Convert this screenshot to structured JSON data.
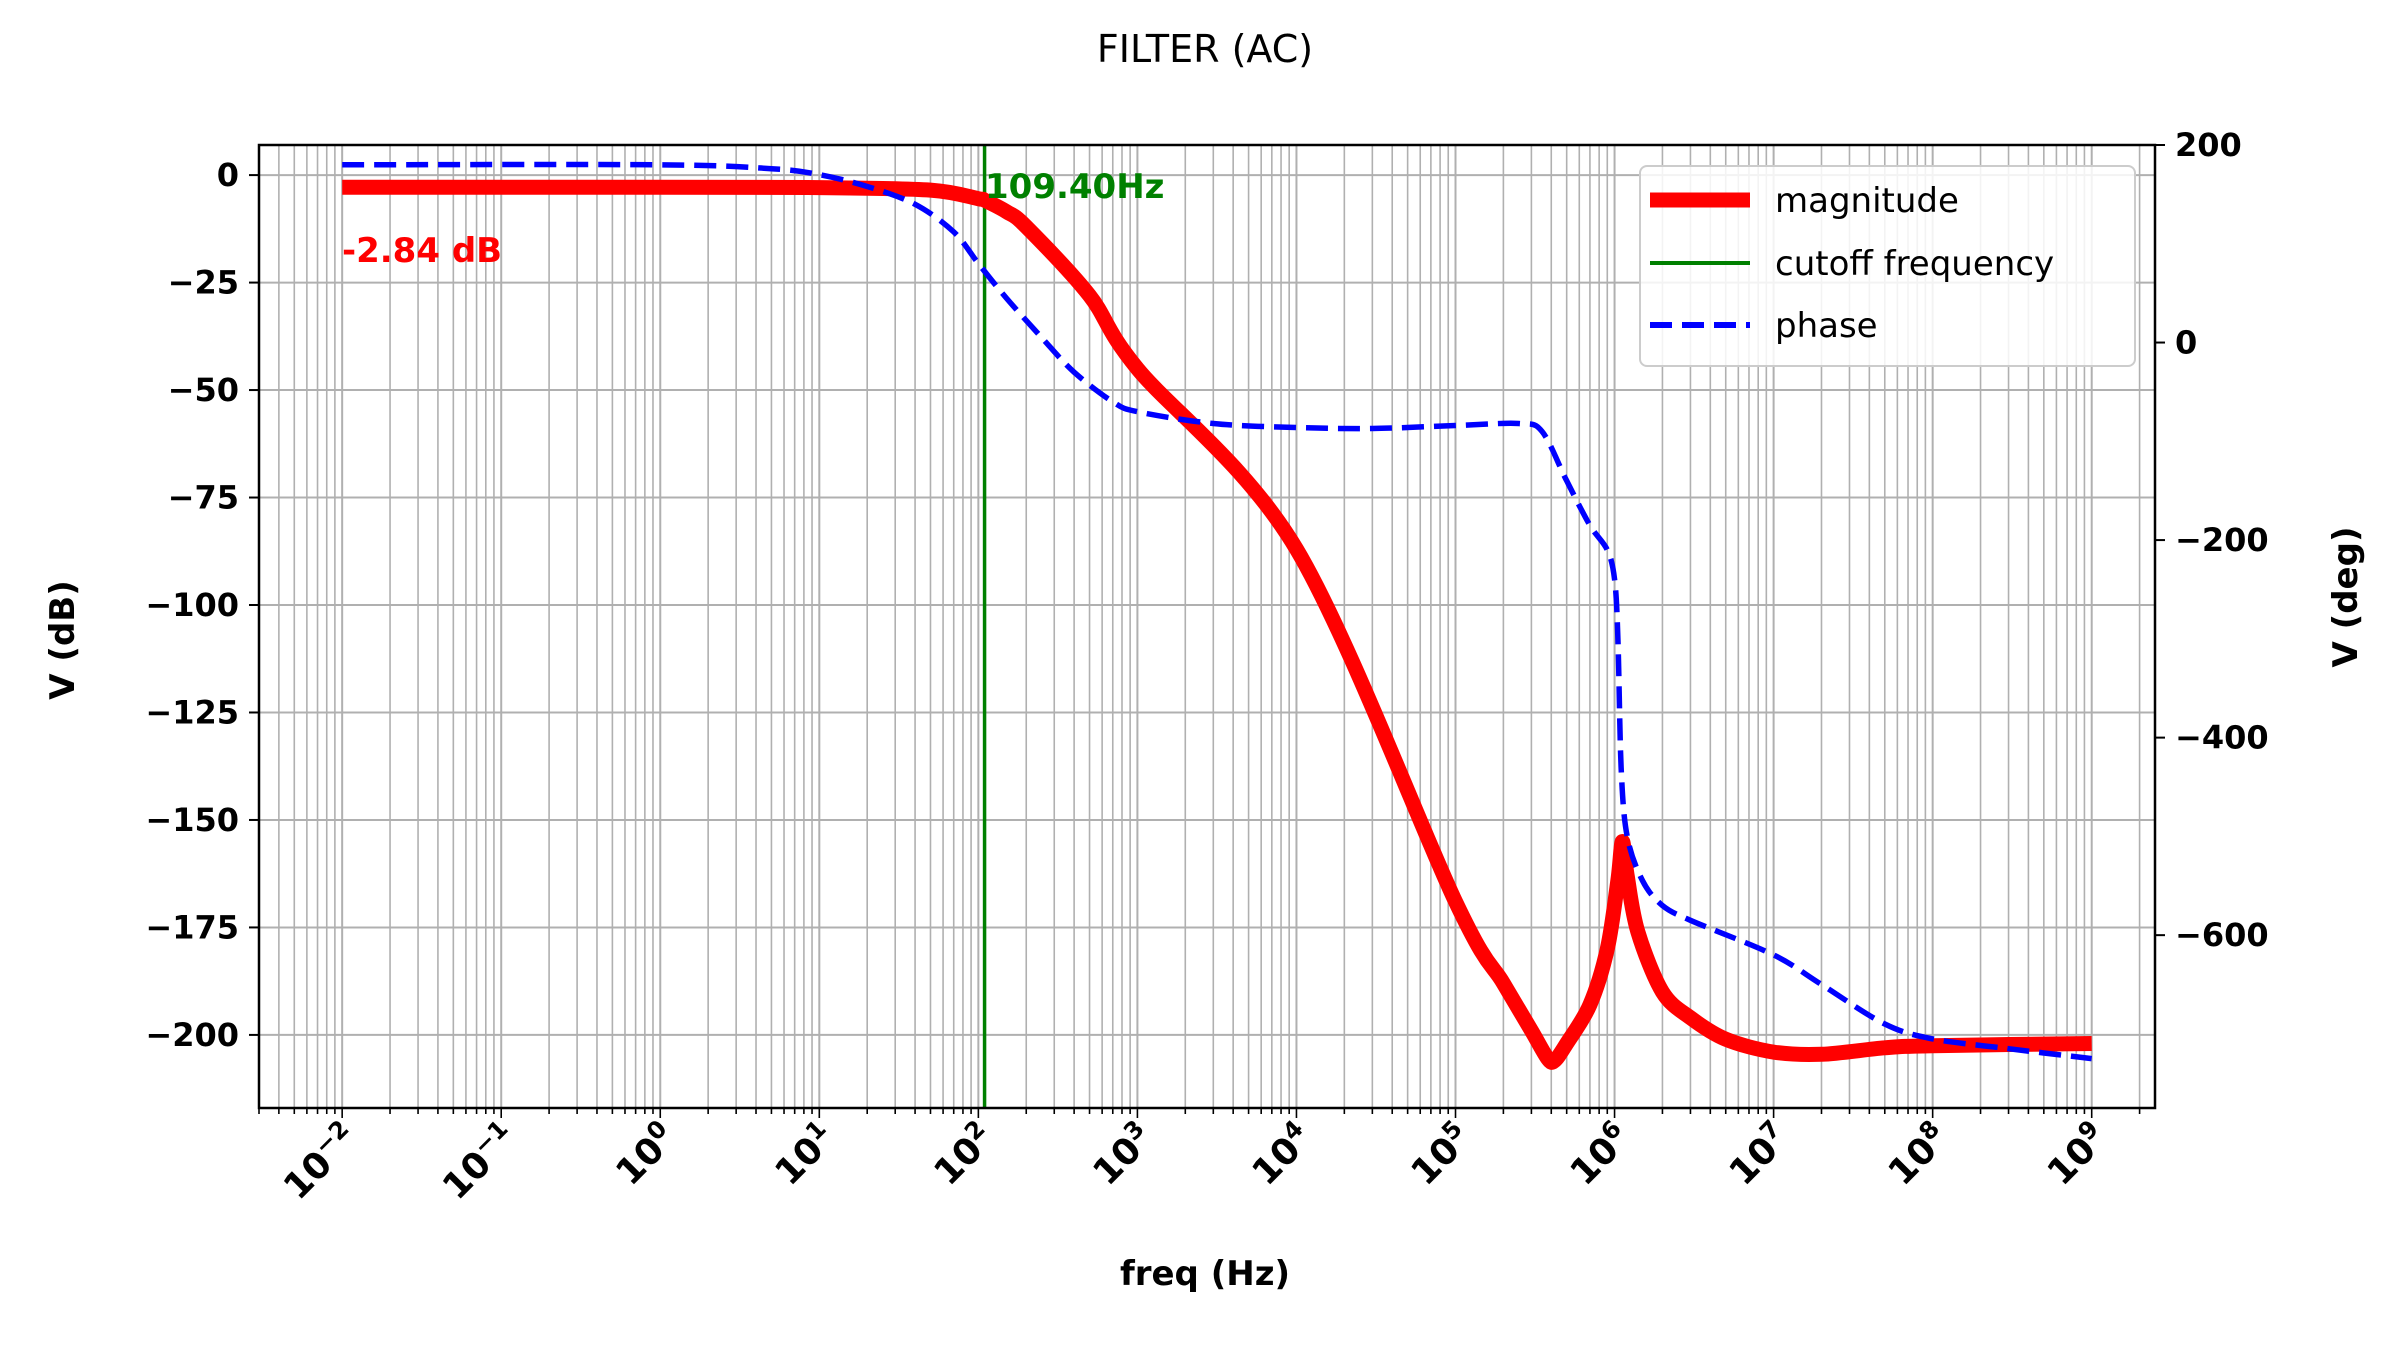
{
  "chart_data": {
    "type": "line",
    "title": "FILTER (AC)",
    "xlabel": "freq (Hz)",
    "ylabel_left": "V (dB)",
    "ylabel_right": "V (deg)",
    "xscale": "log",
    "xlim": [
      0.003,
      2500000000
    ],
    "ylim_left": [
      -217,
      7
    ],
    "ylim_right": [
      -775,
      200
    ],
    "grid": true,
    "legend_position": "top-right",
    "x_ticks": [
      {
        "value": 0.01,
        "base": "10",
        "exp": "−2"
      },
      {
        "value": 0.1,
        "base": "10",
        "exp": "−1"
      },
      {
        "value": 1,
        "base": "10",
        "exp": "0"
      },
      {
        "value": 10,
        "base": "10",
        "exp": "1"
      },
      {
        "value": 100,
        "base": "10",
        "exp": "2"
      },
      {
        "value": 1000,
        "base": "10",
        "exp": "3"
      },
      {
        "value": 10000,
        "base": "10",
        "exp": "4"
      },
      {
        "value": 100000,
        "base": "10",
        "exp": "5"
      },
      {
        "value": 1000000,
        "base": "10",
        "exp": "6"
      },
      {
        "value": 10000000,
        "base": "10",
        "exp": "7"
      },
      {
        "value": 100000000,
        "base": "10",
        "exp": "8"
      },
      {
        "value": 1000000000,
        "base": "10",
        "exp": "9"
      }
    ],
    "y_ticks_left": [
      {
        "value": 0,
        "label": "0"
      },
      {
        "value": -25,
        "label": "−25"
      },
      {
        "value": -50,
        "label": "−50"
      },
      {
        "value": -75,
        "label": "−75"
      },
      {
        "value": -100,
        "label": "−100"
      },
      {
        "value": -125,
        "label": "−125"
      },
      {
        "value": -150,
        "label": "−150"
      },
      {
        "value": -175,
        "label": "−175"
      },
      {
        "value": -200,
        "label": "−200"
      }
    ],
    "y_ticks_right": [
      {
        "value": 200,
        "label": "200"
      },
      {
        "value": 0,
        "label": "0"
      },
      {
        "value": -200,
        "label": "−200"
      },
      {
        "value": -400,
        "label": "−400"
      },
      {
        "value": -600,
        "label": "−600"
      }
    ],
    "series": [
      {
        "name": "magnitude",
        "axis": "left",
        "color": "#ff0000",
        "style": "solid",
        "points": [
          [
            0.01,
            -2.84
          ],
          [
            1,
            -2.84
          ],
          [
            10,
            -2.9
          ],
          [
            50,
            -3.5
          ],
          [
            100,
            -5.5
          ],
          [
            109.4,
            -5.84
          ],
          [
            150,
            -8.5
          ],
          [
            200,
            -12
          ],
          [
            500,
            -28
          ],
          [
            1000,
            -45
          ],
          [
            10000,
            -87
          ],
          [
            100000,
            -169
          ],
          [
            200000,
            -188
          ],
          [
            300000,
            -199
          ],
          [
            380000,
            -205.5
          ],
          [
            420000,
            -206
          ],
          [
            500000,
            -202
          ],
          [
            700000,
            -193
          ],
          [
            900000,
            -180
          ],
          [
            1050000,
            -164
          ],
          [
            1120000,
            -155
          ],
          [
            1200000,
            -163
          ],
          [
            1400000,
            -176
          ],
          [
            2000000,
            -190
          ],
          [
            3000000,
            -196
          ],
          [
            5000000,
            -201
          ],
          [
            10000000,
            -204
          ],
          [
            20000000,
            -204.5
          ],
          [
            50000000,
            -203
          ],
          [
            100000000,
            -202.5
          ],
          [
            1000000000,
            -202
          ]
        ]
      },
      {
        "name": "phase",
        "axis": "right",
        "color": "#0000ff",
        "style": "dashed",
        "points": [
          [
            0.01,
            180
          ],
          [
            1,
            180
          ],
          [
            5,
            176
          ],
          [
            10,
            170
          ],
          [
            20,
            158
          ],
          [
            40,
            140
          ],
          [
            70,
            112
          ],
          [
            100,
            80
          ],
          [
            150,
            45
          ],
          [
            250,
            5
          ],
          [
            400,
            -30
          ],
          [
            700,
            -60
          ],
          [
            1000,
            -70
          ],
          [
            3000,
            -82
          ],
          [
            10000,
            -86
          ],
          [
            30000,
            -87
          ],
          [
            100000,
            -84
          ],
          [
            250000,
            -82
          ],
          [
            350000,
            -90
          ],
          [
            500000,
            -140
          ],
          [
            700000,
            -185
          ],
          [
            900000,
            -210
          ],
          [
            1000000,
            -240
          ],
          [
            1050000,
            -300
          ],
          [
            1100000,
            -430
          ],
          [
            1200000,
            -500
          ],
          [
            1500000,
            -545
          ],
          [
            2000000,
            -570
          ],
          [
            3000000,
            -585
          ],
          [
            10000000,
            -620
          ],
          [
            20000000,
            -650
          ],
          [
            50000000,
            -690
          ],
          [
            100000000,
            -705
          ],
          [
            300000000,
            -715
          ],
          [
            1000000000,
            -725
          ]
        ]
      }
    ],
    "cutoff": {
      "name": "cutoff frequency",
      "freq": 109.4,
      "label": "109.40Hz",
      "color": "#008000"
    },
    "dc_gain": {
      "value": -2.84,
      "label": "-2.84 dB",
      "color": "#ff0000"
    },
    "legend": [
      {
        "label": "magnitude",
        "color": "#ff0000",
        "style": "thick"
      },
      {
        "label": "cutoff frequency",
        "color": "#008000",
        "style": "thin"
      },
      {
        "label": "phase",
        "color": "#0000ff",
        "style": "dashed"
      }
    ]
  }
}
